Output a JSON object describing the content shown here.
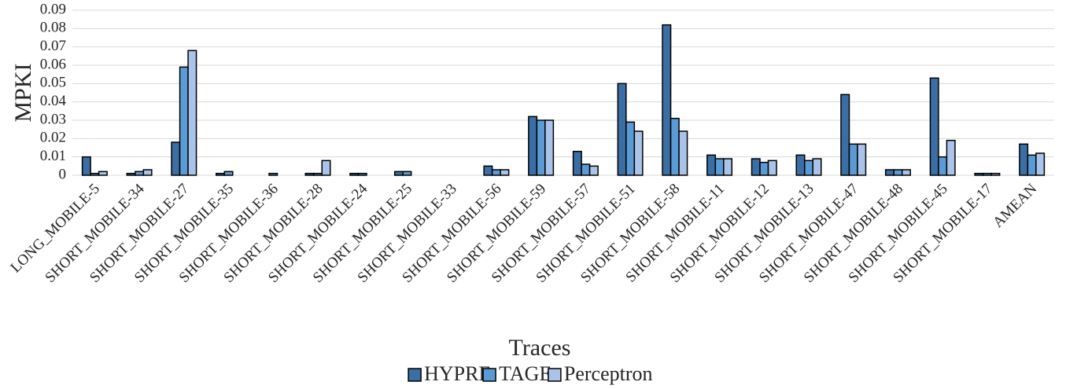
{
  "chart_data": {
    "type": "bar",
    "title": "",
    "xlabel": "Traces",
    "ylabel": "MPKI",
    "ylim": [
      0,
      0.09
    ],
    "yticks": [
      "0",
      "0.01",
      "0.02",
      "0.03",
      "0.04",
      "0.05",
      "0.06",
      "0.07",
      "0.08",
      "0.09"
    ],
    "grid": true,
    "legend_position": "bottom",
    "categories": [
      "LONG_MOBILE-5",
      "SHORT_MOBILE-34",
      "SHORT_MOBILE-27",
      "SHORT_MOBILE-35",
      "SHORT_MOBILE-36",
      "SHORT_MOBILE-28",
      "SHORT_MOBILE-24",
      "SHORT_MOBILE-25",
      "SHORT_MOBILE-33",
      "SHORT_MOBILE-56",
      "SHORT_MOBILE-59",
      "SHORT_MOBILE-57",
      "SHORT_MOBILE-51",
      "SHORT_MOBILE-58",
      "SHORT_MOBILE-11",
      "SHORT_MOBILE-12",
      "SHORT_MOBILE-13",
      "SHORT_MOBILE-47",
      "SHORT_MOBILE-48",
      "SHORT_MOBILE-45",
      "SHORT_MOBILE-17",
      "AMEAN"
    ],
    "series": [
      {
        "name": "HYPRE",
        "color": "#3a6ea5",
        "values": [
          0.01,
          0.001,
          0.018,
          0.001,
          0.0,
          0.001,
          0.001,
          0.002,
          0.0,
          0.005,
          0.032,
          0.013,
          0.05,
          0.082,
          0.011,
          0.009,
          0.011,
          0.044,
          0.003,
          0.053,
          0.001,
          0.017
        ]
      },
      {
        "name": "TAGE",
        "color": "#5b9bd5",
        "values": [
          0.001,
          0.002,
          0.059,
          0.002,
          0.001,
          0.001,
          0.001,
          0.002,
          0.0,
          0.003,
          0.03,
          0.006,
          0.029,
          0.031,
          0.009,
          0.007,
          0.008,
          0.017,
          0.003,
          0.01,
          0.001,
          0.011
        ]
      },
      {
        "name": "Perceptron",
        "color": "#a9c4e8",
        "values": [
          0.002,
          0.003,
          0.068,
          0.0,
          0.0,
          0.008,
          0.0,
          0.0,
          0.0,
          0.003,
          0.03,
          0.005,
          0.024,
          0.024,
          0.009,
          0.008,
          0.009,
          0.017,
          0.003,
          0.019,
          0.001,
          0.012
        ]
      }
    ]
  }
}
